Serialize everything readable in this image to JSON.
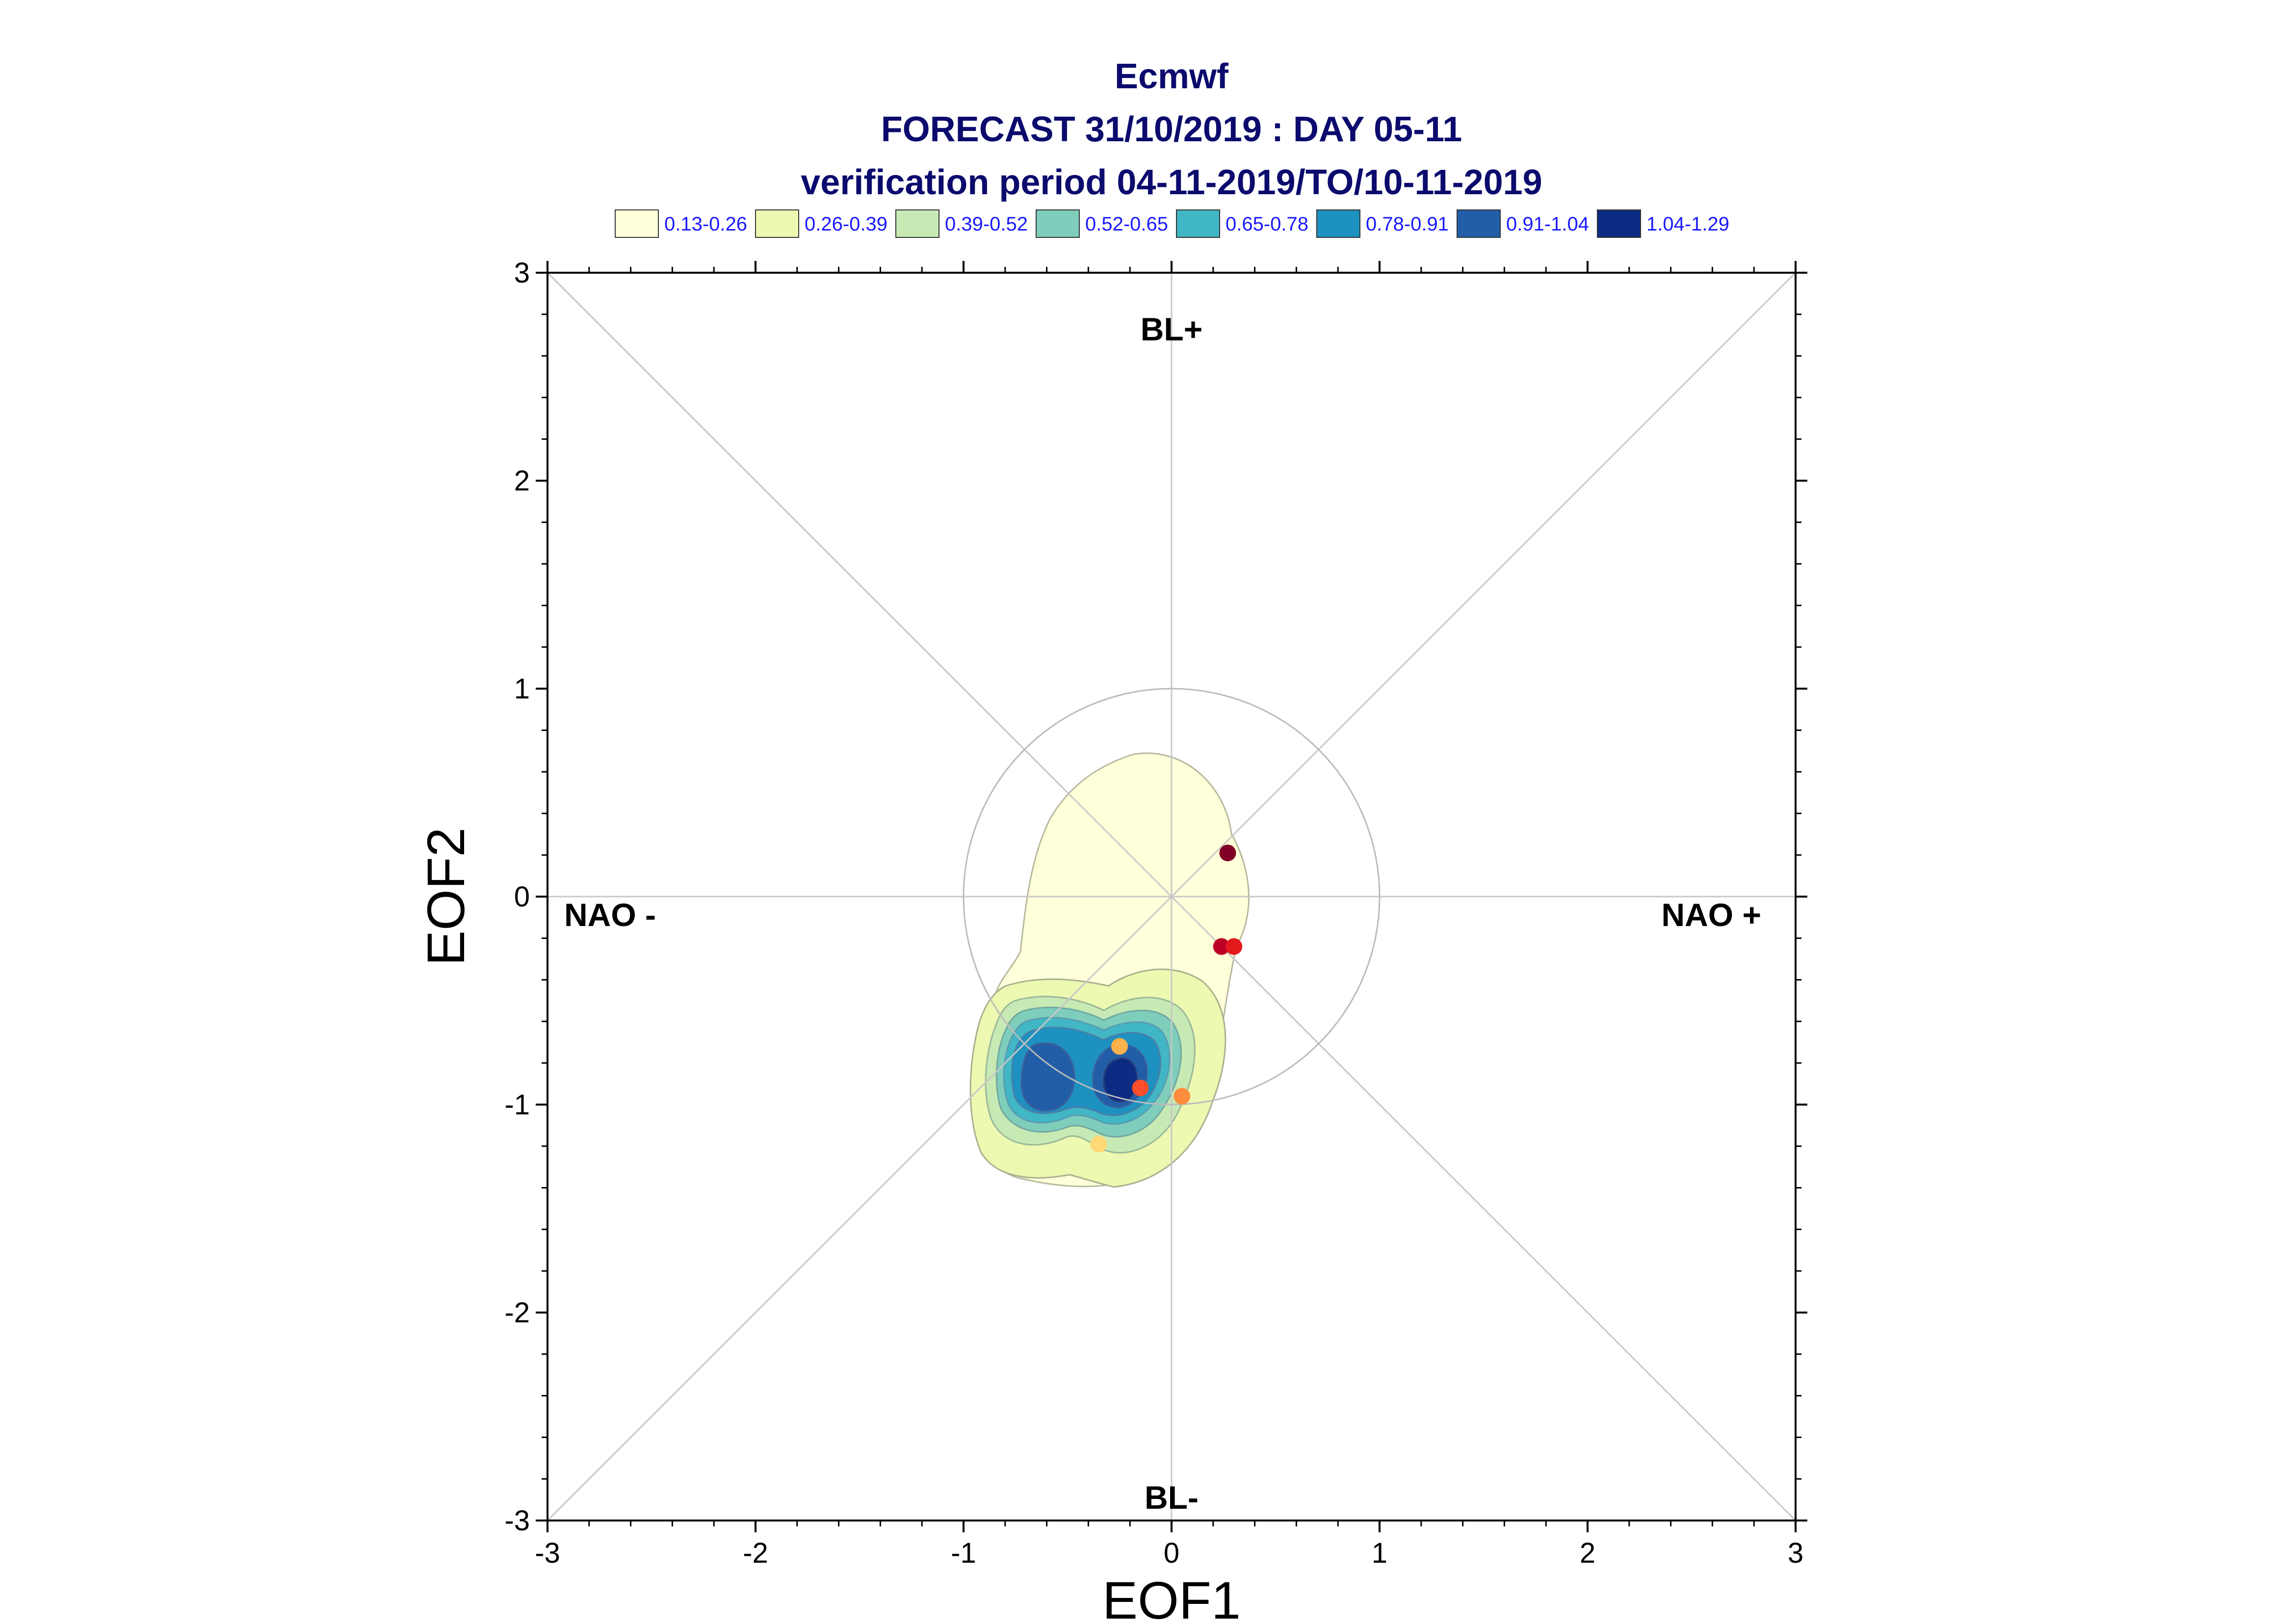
{
  "chart_data": {
    "type": "scatter",
    "title_lines": [
      "Ecmwf",
      "FORECAST 31/10/2019 : DAY 05-11",
      "verification period 04-11-2019/TO/10-11-2019"
    ],
    "xlabel": "EOF1",
    "ylabel": "EOF2",
    "xlim": [
      -3,
      3
    ],
    "ylim": [
      -3,
      3
    ],
    "x_ticks": [
      "-3",
      "-2",
      "-1",
      "0",
      "1",
      "2",
      "3"
    ],
    "y_ticks": [
      "-3",
      "-2",
      "-1",
      "0",
      "1",
      "2",
      "3"
    ],
    "grid": false,
    "regions": {
      "top": "BL+",
      "bottom": "BL-",
      "left": "NAO -",
      "right": "NAO +"
    },
    "unit_circle_radius": 1,
    "density_legend": [
      {
        "label": "0.13-0.26",
        "color": "#ffffd9"
      },
      {
        "label": "0.26-0.39",
        "color": "#edf8b1"
      },
      {
        "label": "0.39-0.52",
        "color": "#c7e9b4"
      },
      {
        "label": "0.52-0.65",
        "color": "#7fcdbb"
      },
      {
        "label": "0.65-0.78",
        "color": "#41b6c4"
      },
      {
        "label": "0.78-0.91",
        "color": "#1d91c0"
      },
      {
        "label": "0.91-1.04",
        "color": "#225ea8"
      },
      {
        "label": "1.04-1.29",
        "color": "#0c2c84"
      }
    ],
    "points": [
      {
        "x": 0.27,
        "y": 0.21,
        "color": "#800026"
      },
      {
        "x": 0.24,
        "y": -0.24,
        "color": "#bd0026"
      },
      {
        "x": 0.3,
        "y": -0.24,
        "color": "#e31a1c"
      },
      {
        "x": -0.15,
        "y": -0.92,
        "color": "#fc4e2a"
      },
      {
        "x": 0.05,
        "y": -0.96,
        "color": "#fd8d3c"
      },
      {
        "x": -0.25,
        "y": -0.72,
        "color": "#feb24c"
      },
      {
        "x": -0.35,
        "y": -1.19,
        "color": "#fed976"
      }
    ]
  }
}
